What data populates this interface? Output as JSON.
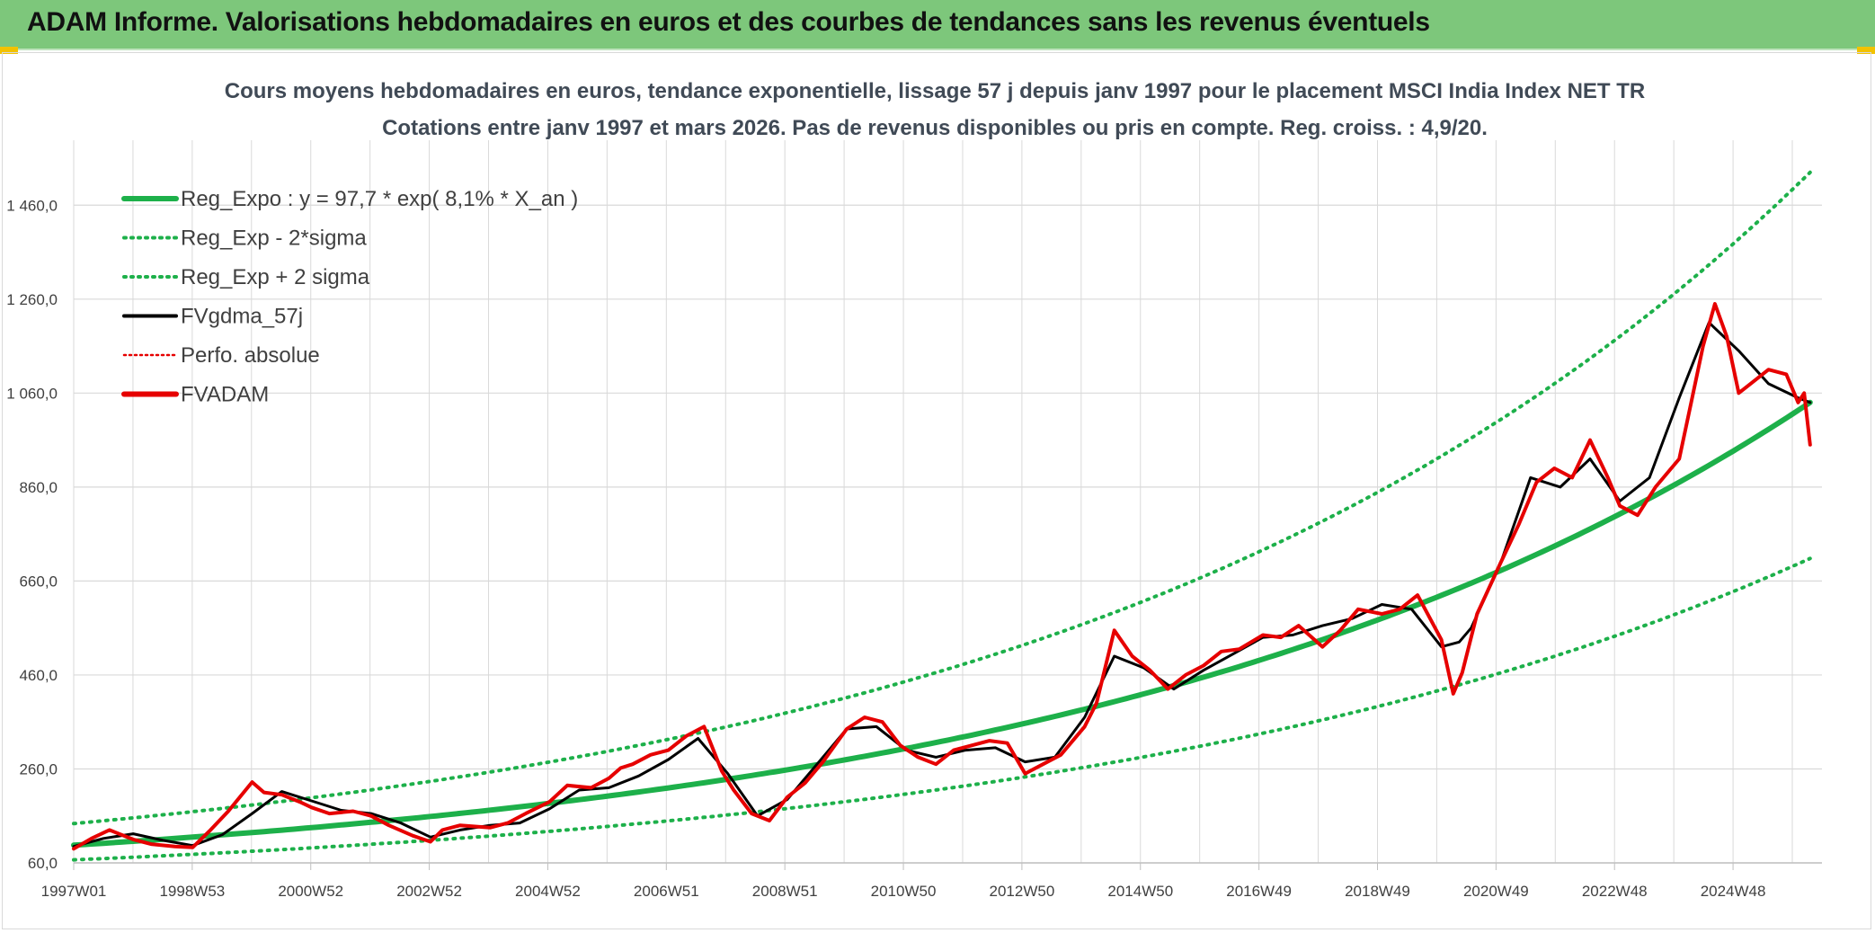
{
  "header": {
    "title": "ADAM Informe. Valorisations hebdomadaires en euros et des courbes de tendances sans les revenus éventuels"
  },
  "colors": {
    "banner": "#7dc77b",
    "regression": "#1db04a",
    "fvadam": "#e60000",
    "fvgdma": "#000000",
    "perfo": "#e60000",
    "grid": "#d9d9d9"
  },
  "chart_data": {
    "type": "line",
    "title": "Cours moyens hebdomadaires en euros, tendance exponentielle, lissage 57 j depuis janv 1997 pour le placement MSCI India Index NET TR",
    "subtitle": "Cotations entre janv 1997 et mars 2026. Pas de revenus disponibles ou pris en compte. Reg. croiss. : 4,9/20.",
    "xlabel": "",
    "ylabel": "",
    "x_range": [
      "1997W01",
      "2026W11"
    ],
    "ylim": [
      60,
      1560
    ],
    "y_ticks": [
      "60,0",
      "260,0",
      "460,0",
      "660,0",
      "860,0",
      "1 060,0",
      "1 260,0",
      "1 460,0"
    ],
    "y_tick_values": [
      60,
      260,
      460,
      660,
      860,
      1060,
      1260,
      1460
    ],
    "x_ticks": [
      "1997W01",
      "1998W53",
      "2000W52",
      "2002W52",
      "2004W52",
      "2006W51",
      "2008W51",
      "2010W50",
      "2012W50",
      "2014W50",
      "2016W49",
      "2018W49",
      "2020W49",
      "2022W48",
      "2024W48"
    ],
    "grid": true,
    "legend_position": "top-left",
    "legend": [
      {
        "key": "reg",
        "label": "Reg_Expo : y = 97,7 * exp( 8,1% *  X_an )",
        "color": "#1db04a",
        "style": "solid-thick"
      },
      {
        "key": "low",
        "label": "Reg_Exp - 2*sigma",
        "color": "#1db04a",
        "style": "dotted"
      },
      {
        "key": "high",
        "label": "Reg_Exp + 2 sigma",
        "color": "#1db04a",
        "style": "dotted"
      },
      {
        "key": "gdma",
        "label": "FVgdma_57j",
        "color": "#000000",
        "style": "solid"
      },
      {
        "key": "perfo",
        "label": "Perfo. absolue",
        "color": "#e60000",
        "style": "dotted-thin"
      },
      {
        "key": "adam",
        "label": "FVADAM",
        "color": "#e60000",
        "style": "solid-thick"
      }
    ],
    "series": [
      {
        "name": "Reg_Expo : y = 97,7 * exp( 8,1% *  X_an )",
        "x_year": [
          1997.0,
          1999.0,
          2001.0,
          2003.0,
          2005.0,
          2007.0,
          2009.0,
          2011.0,
          2013.0,
          2015.0,
          2017.0,
          2019.0,
          2021.0,
          2023.0,
          2025.0,
          2026.2
        ],
        "values": [
          97.7,
          114.8,
          134.9,
          158.6,
          186.4,
          219.1,
          257.5,
          302.6,
          355.6,
          418.0,
          491.2,
          577.3,
          678.5,
          797.4,
          937.1,
          1032
        ]
      },
      {
        "name": "Reg_Exp - 2*sigma",
        "x_year": [
          1997.0,
          1999.0,
          2001.0,
          2003.0,
          2005.0,
          2007.0,
          2009.0,
          2011.0,
          2013.0,
          2015.0,
          2017.0,
          2019.0,
          2021.0,
          2023.0,
          2025.0,
          2026.2
        ],
        "values": [
          66.5,
          78.1,
          91.8,
          107.9,
          126.8,
          149.1,
          175.2,
          205.9,
          241.9,
          284.3,
          334.2,
          392.8,
          461.6,
          542.5,
          637.6,
          702
        ]
      },
      {
        "name": "Reg_Exp + 2 sigma",
        "x_year": [
          1997.0,
          1999.0,
          2001.0,
          2003.0,
          2005.0,
          2007.0,
          2009.0,
          2011.0,
          2013.0,
          2015.0,
          2017.0,
          2019.0,
          2021.0,
          2023.0,
          2025.0,
          2026.2
        ],
        "values": [
          143.7,
          168.8,
          198.4,
          233.2,
          274.0,
          322.1,
          378.5,
          444.8,
          522.8,
          614.4,
          722.1,
          848.6,
          997.3,
          1172.1,
          1377.5,
          1516
        ]
      },
      {
        "name": "FVgdma_57j",
        "x_year": [
          1997.0,
          1997.5,
          1998.0,
          1998.5,
          1999.0,
          1999.5,
          2000.0,
          2000.5,
          2001.0,
          2001.5,
          2002.0,
          2002.5,
          2003.0,
          2003.5,
          2004.0,
          2004.5,
          2005.0,
          2005.5,
          2006.0,
          2006.5,
          2007.0,
          2007.5,
          2008.0,
          2008.5,
          2009.0,
          2009.5,
          2010.0,
          2010.5,
          2011.0,
          2011.5,
          2012.0,
          2012.5,
          2013.0,
          2013.5,
          2014.0,
          2014.5,
          2015.0,
          2015.5,
          2016.0,
          2016.5,
          2017.0,
          2017.5,
          2018.0,
          2018.5,
          2019.0,
          2019.5,
          2020.0,
          2020.3,
          2020.5,
          2021.0,
          2021.5,
          2022.0,
          2022.5,
          2023.0,
          2023.5,
          2024.0,
          2024.5,
          2025.0,
          2025.5,
          2026.0,
          2026.2
        ],
        "values": [
          95,
          112,
          122,
          108,
          97,
          120,
          165,
          212,
          192,
          172,
          165,
          145,
          115,
          130,
          140,
          145,
          175,
          215,
          220,
          245,
          280,
          325,
          250,
          160,
          195,
          270,
          345,
          350,
          300,
          285,
          300,
          305,
          275,
          285,
          370,
          500,
          475,
          430,
          470,
          505,
          540,
          545,
          565,
          580,
          610,
          600,
          520,
          530,
          560,
          700,
          880,
          860,
          920,
          830,
          880,
          1050,
          1210,
          1150,
          1080,
          1050,
          1040
        ]
      },
      {
        "name": "Perfo. absolue",
        "x_year": [],
        "values": []
      },
      {
        "name": "FVADAM",
        "x_year": [
          1997.0,
          1997.3,
          1997.6,
          1998.0,
          1998.3,
          1998.7,
          1999.0,
          1999.3,
          1999.6,
          2000.0,
          2000.2,
          2000.5,
          2000.8,
          2001.0,
          2001.3,
          2001.7,
          2002.0,
          2002.3,
          2002.7,
          2003.0,
          2003.2,
          2003.5,
          2004.0,
          2004.3,
          2004.6,
          2005.0,
          2005.3,
          2005.7,
          2006.0,
          2006.2,
          2006.4,
          2006.7,
          2007.0,
          2007.3,
          2007.6,
          2007.9,
          2008.1,
          2008.4,
          2008.7,
          2009.0,
          2009.3,
          2009.6,
          2010.0,
          2010.3,
          2010.6,
          2010.9,
          2011.2,
          2011.5,
          2011.8,
          2012.1,
          2012.4,
          2012.7,
          2013.0,
          2013.3,
          2013.6,
          2014.0,
          2014.2,
          2014.5,
          2014.8,
          2015.1,
          2015.4,
          2015.7,
          2016.0,
          2016.3,
          2016.6,
          2017.0,
          2017.3,
          2017.6,
          2018.0,
          2018.3,
          2018.6,
          2019.0,
          2019.3,
          2019.6,
          2020.0,
          2020.2,
          2020.35,
          2020.6,
          2021.0,
          2021.3,
          2021.6,
          2021.9,
          2022.2,
          2022.5,
          2022.8,
          2023.0,
          2023.3,
          2023.6,
          2024.0,
          2024.2,
          2024.4,
          2024.6,
          2024.8,
          2025.0,
          2025.2,
          2025.5,
          2025.8,
          2026.0,
          2026.1,
          2026.2
        ],
        "values": [
          90,
          112,
          130,
          110,
          100,
          95,
          93,
          130,
          170,
          232,
          210,
          205,
          190,
          178,
          165,
          170,
          160,
          140,
          118,
          105,
          130,
          140,
          135,
          145,
          165,
          190,
          225,
          220,
          240,
          262,
          270,
          290,
          300,
          330,
          350,
          255,
          215,
          165,
          150,
          200,
          230,
          275,
          345,
          370,
          360,
          310,
          285,
          270,
          300,
          310,
          320,
          315,
          250,
          270,
          290,
          350,
          400,
          555,
          500,
          470,
          430,
          460,
          480,
          510,
          515,
          545,
          540,
          565,
          520,
          555,
          600,
          590,
          600,
          630,
          535,
          420,
          465,
          590,
          700,
          780,
          870,
          900,
          880,
          960,
          880,
          820,
          800,
          860,
          920,
          1040,
          1160,
          1250,
          1180,
          1060,
          1080,
          1110,
          1100,
          1040,
          1060,
          950
        ]
      }
    ]
  }
}
